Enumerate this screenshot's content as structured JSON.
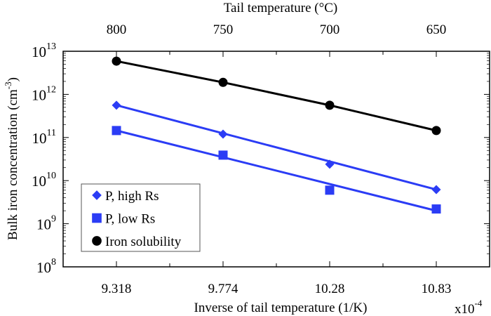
{
  "chart_data": {
    "type": "line",
    "xlabel": "Inverse of tail temperature (1/K)",
    "x_multiplier": "x10",
    "x_multiplier_exp": "-4",
    "x2label": "Tail temperature (°C)",
    "ylabel": "Bulk iron concentration (cm",
    "ylabel_exp": "-3",
    "ylabel_end": ")",
    "y_scale": "log",
    "ylim": [
      100000000.0,
      10000000000000.0
    ],
    "categories": [
      "9.318",
      "9.774",
      "10.28",
      "10.83"
    ],
    "top_categories": [
      "800",
      "750",
      "700",
      "650"
    ],
    "y_ticks": [
      {
        "base": "10",
        "exp": "13"
      },
      {
        "base": "10",
        "exp": "12"
      },
      {
        "base": "10",
        "exp": "11"
      },
      {
        "base": "10",
        "exp": "10"
      },
      {
        "base": "10",
        "exp": "9"
      },
      {
        "base": "10",
        "exp": "8"
      }
    ],
    "legend_position": "bottom-left",
    "grid": false,
    "series": [
      {
        "name": "P, high Rs",
        "marker": "diamond",
        "color": "#2b3cf5",
        "values": [
          560000000000.0,
          120000000000.0,
          24000000000.0,
          6200000000.0
        ],
        "fit_line": [
          560000000000.0,
          6200000000.0
        ]
      },
      {
        "name": "P, low Rs",
        "marker": "square",
        "color": "#2b3cf5",
        "values": [
          145000000000.0,
          39000000000.0,
          6000000000.0,
          2200000000.0
        ],
        "fit_line": [
          145000000000.0,
          2000000000.0
        ]
      },
      {
        "name": "Iron solubility",
        "marker": "circle",
        "color": "#000000",
        "values": [
          5900000000000.0,
          1900000000000.0,
          560000000000.0,
          145000000000.0
        ],
        "connect": true
      }
    ]
  }
}
